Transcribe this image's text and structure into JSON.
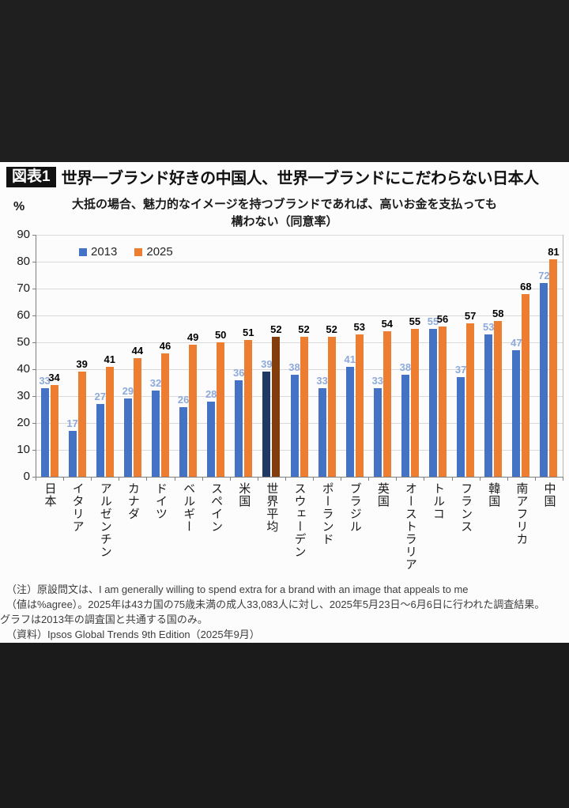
{
  "figure_label": "図表1",
  "title": "世界一ブランド好きの中国人、世界一ブランドにこだわらない日本人",
  "subtitle_line1": "大抵の場合、魅力的なイメージを持つブランドであれば、高いお金を支払っても",
  "subtitle_line2": "構わない（同意率）",
  "y_unit": "%",
  "notes": [
    "（注）原設問文は、I am generally willing to spend extra for a brand with an image that appeals to me",
    "（値は%agree）。2025年は43カ国の75歳未満の成人33,083人に対し、2025年5月23日～6月6日に行われた調査結果。",
    "グラフは2013年の調査国と共通する国のみ。",
    "（資料）Ipsos Global Trends 9th Edition（2025年9月）"
  ],
  "chart_data": {
    "type": "bar",
    "title": "大抵の場合、魅力的なイメージを持つブランドであれば、高いお金を支払っても構わない（同意率）",
    "categories": [
      "日本",
      "イタリア",
      "アルゼンチン",
      "カナダ",
      "ドイツ",
      "ベルギー",
      "スペイン",
      "米国",
      "世界平均",
      "スウェーデン",
      "ポーランド",
      "ブラジル",
      "英国",
      "オーストラリア",
      "トルコ",
      "フランス",
      "韓国",
      "南アフリカ",
      "中国"
    ],
    "series": [
      {
        "name": "2013",
        "values": [
          33,
          17,
          27,
          29,
          32,
          26,
          28,
          36,
          39,
          38,
          33,
          41,
          33,
          38,
          55,
          37,
          53,
          47,
          72
        ]
      },
      {
        "name": "2025",
        "values": [
          34,
          39,
          41,
          44,
          46,
          49,
          50,
          51,
          52,
          52,
          52,
          53,
          54,
          55,
          56,
          57,
          58,
          68,
          81
        ]
      }
    ],
    "highlight_category": "世界平均",
    "value_labels_shown": true,
    "xlabel": "",
    "ylabel": "%",
    "ylim": [
      0,
      90
    ],
    "ytick_step": 10,
    "yticks": [
      0,
      10,
      20,
      30,
      40,
      50,
      60,
      70,
      80,
      90
    ],
    "grid": true,
    "legend_position": "top-left-inside",
    "colors": {
      "s2013": "#4472C4",
      "s2025": "#ED7D31",
      "s2013_highlight": "#1F3864",
      "s2025_highlight": "#833C0C",
      "label_2013": "#8EAADB",
      "label_2025": "#000000"
    }
  }
}
